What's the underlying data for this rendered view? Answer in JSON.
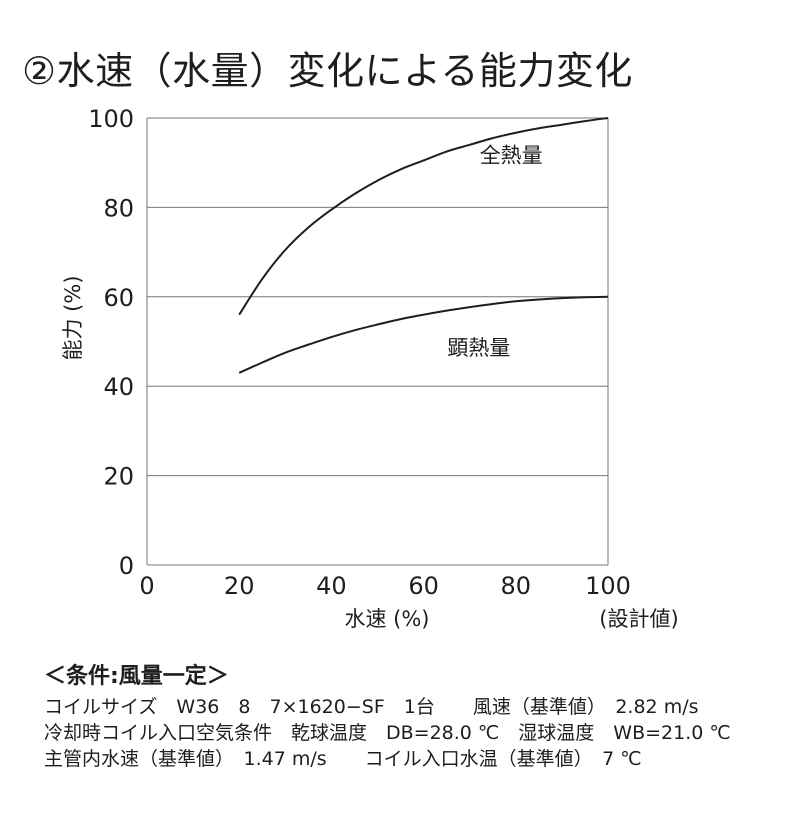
{
  "title": "②水速（水量）変化による能力変化",
  "chart_data": {
    "type": "line",
    "xlabel": "水速 (%)",
    "xlabel_sub": "(設計値)",
    "ylabel": "能力 (%)",
    "xlim": [
      0,
      100
    ],
    "ylim": [
      0,
      100
    ],
    "x_ticks": [
      "0",
      "20",
      "40",
      "60",
      "80",
      "100"
    ],
    "y_ticks": [
      "0",
      "20",
      "40",
      "60",
      "80",
      "100"
    ],
    "grid": "horizontal",
    "series": [
      {
        "name": "全熱量",
        "x": [
          20,
          25,
          30,
          35,
          40,
          45,
          50,
          55,
          60,
          65,
          70,
          75,
          80,
          85,
          90,
          95,
          100
        ],
        "y": [
          56,
          64,
          70.5,
          75.5,
          79.5,
          83,
          86,
          88.5,
          90.5,
          92.5,
          94,
          95.5,
          96.7,
          97.7,
          98.5,
          99.3,
          100
        ]
      },
      {
        "name": "顕熱量",
        "x": [
          20,
          25,
          30,
          35,
          40,
          45,
          50,
          55,
          60,
          65,
          70,
          75,
          80,
          85,
          90,
          95,
          100
        ],
        "y": [
          43,
          45.3,
          47.5,
          49.3,
          51,
          52.5,
          53.8,
          55,
          56,
          56.9,
          57.7,
          58.4,
          59,
          59.4,
          59.7,
          59.9,
          60
        ]
      }
    ]
  },
  "conditions": {
    "heading": "＜条件:風量一定＞",
    "lines": [
      [
        "コイルサイズ　W36　8　7×1620−SF　1台",
        "　　風速（基準値）　2.82 m/s"
      ],
      [
        "冷却時コイル入口空気条件　乾球温度　DB=28.0 ℃",
        "　湿球温度　WB=21.0 ℃"
      ],
      [
        "主管内水速（基準値）　1.47 m/s",
        "　　コイル入口水温（基準値）　7 ℃"
      ]
    ]
  }
}
